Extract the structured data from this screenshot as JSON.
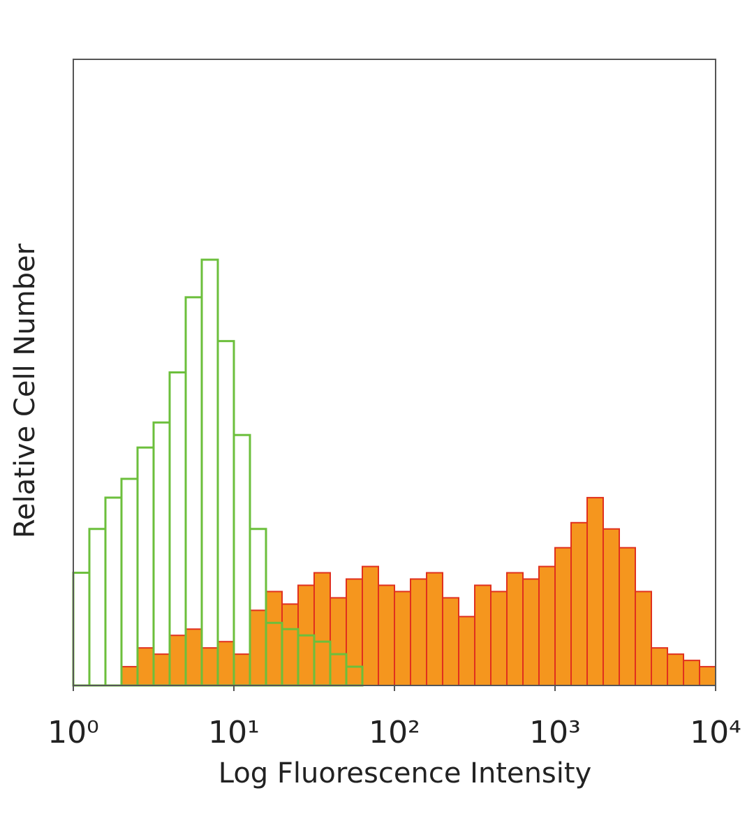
{
  "chart_data": {
    "type": "histogram",
    "xlabel": "Log Fluorescence Intensity",
    "ylabel": "Relative Cell Number",
    "xscale": "log",
    "xlim": [
      1,
      10000
    ],
    "ylim": [
      0,
      10
    ],
    "xticks": [
      {
        "value": 1,
        "label": "10⁰"
      },
      {
        "value": 10,
        "label": "10¹"
      },
      {
        "value": 100,
        "label": "10²"
      },
      {
        "value": 1000,
        "label": "10³"
      },
      {
        "value": 10000,
        "label": "10⁴"
      }
    ],
    "bins": [
      1,
      1.259,
      1.585,
      1.995,
      2.512,
      3.162,
      3.981,
      5.012,
      6.31,
      7.943,
      10,
      12.59,
      15.85,
      19.95,
      25.12,
      31.62,
      39.81,
      50.12,
      63.1,
      79.43,
      100,
      125.9,
      158.5,
      199.5,
      251.2,
      316.2,
      398.1,
      501.2,
      631,
      794.3,
      1000,
      1259,
      1585,
      1995,
      2512,
      3162,
      3981,
      5012,
      6310,
      7943,
      10000
    ],
    "series": [
      {
        "color": "#f5961e",
        "edge_color": "#e0301e",
        "filled": true,
        "values": [
          0,
          0,
          0,
          0.3,
          0.6,
          0.5,
          0.8,
          0.9,
          0.6,
          0.7,
          0.5,
          1.2,
          1.5,
          1.3,
          1.6,
          1.8,
          1.4,
          1.7,
          1.9,
          1.6,
          1.5,
          1.7,
          1.8,
          1.4,
          1.1,
          1.6,
          1.5,
          1.8,
          1.7,
          1.9,
          2.2,
          2.6,
          3.0,
          2.5,
          2.2,
          1.5,
          0.6,
          0.5,
          0.4,
          0.3
        ]
      },
      {
        "color": "#6cbf3c",
        "filled": false,
        "values": [
          1.8,
          2.5,
          3.0,
          3.3,
          3.8,
          4.2,
          5.0,
          6.2,
          6.8,
          5.5,
          4.0,
          2.5,
          1.0,
          0.9,
          0.8,
          0.7,
          0.5,
          0.3,
          0,
          0,
          0,
          0,
          0,
          0,
          0,
          0,
          0,
          0,
          0,
          0,
          0,
          0,
          0,
          0,
          0,
          0,
          0,
          0,
          0,
          0
        ]
      }
    ]
  }
}
